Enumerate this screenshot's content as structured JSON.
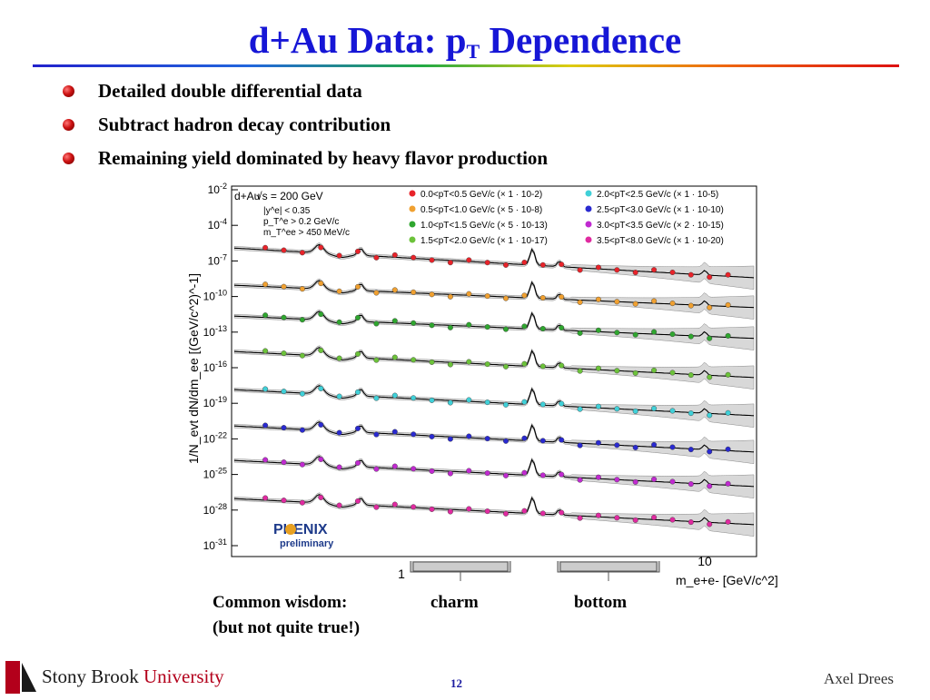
{
  "slide": {
    "title_main": "d+Au Data:  p",
    "title_sub": "T",
    "title_tail": " Dependence",
    "bullets": [
      "Detailed double differential data",
      "Subtract hadron decay contribution",
      "Remaining yield dominated by heavy flavor production"
    ],
    "notes": {
      "common": "Common wisdom:",
      "not_true": "(but not quite true!)",
      "charm": "charm",
      "bottom": "bottom"
    },
    "footer": {
      "logo_a": "Stony Brook ",
      "logo_b": "University",
      "page": "12",
      "author": "Axel Drees"
    }
  },
  "chart_data": {
    "type": "line",
    "ylabel": "1/N_evt dN/dm_ee [(GeV/c^2)^-1]",
    "xlabel": "m_e+e- [GeV/c^2]",
    "y_scale": "log",
    "x_scale": "log",
    "y_ticks": [
      "10-2",
      "10-4",
      "10-7",
      "10-10",
      "10-13",
      "10-16",
      "10-19",
      "10-22",
      "10-25",
      "10-28",
      "10-31"
    ],
    "x_ticks": [
      "1",
      "10"
    ],
    "legend_placement": "top",
    "info": {
      "system": "d+Au",
      "energy": "√s = 200 GeV",
      "cuts": [
        "|y^e| < 0.35",
        "p_T^e > 0.2 GeV/c",
        "m_T^ee > 450 MeV/c"
      ]
    },
    "series": [
      {
        "name": "0.0<pT<0.5 GeV/c (× 1 · 10-2)",
        "color": "#e8232a",
        "offset_decade": -9
      },
      {
        "name": "0.5<pT<1.0 GeV/c (× 5 · 10-8)",
        "color": "#f0a030",
        "offset_decade": -12
      },
      {
        "name": "1.0<pT<1.5 GeV/c (× 5 · 10-13)",
        "color": "#2fa62f",
        "offset_decade": -15
      },
      {
        "name": "1.5<pT<2.0 GeV/c (× 1 · 10-17)",
        "color": "#6cc23a",
        "offset_decade": -18
      },
      {
        "name": "2.0<pT<2.5 GeV/c (× 1 · 10-5)",
        "color": "#40d0d8",
        "offset_decade": -21
      },
      {
        "name": "2.5<pT<3.0 GeV/c (× 1 · 10-10)",
        "color": "#2a2ad0",
        "offset_decade": -24
      },
      {
        "name": "3.0<pT<3.5 GeV/c (× 2 · 10-15)",
        "color": "#c02ad0",
        "offset_decade": -27
      },
      {
        "name": "3.5<pT<8.0 GeV/c (× 1 · 10-20)",
        "color": "#e02aa0",
        "offset_decade": -30
      }
    ],
    "logo": {
      "name": "PHENIX",
      "subtitle": "preliminary"
    }
  }
}
